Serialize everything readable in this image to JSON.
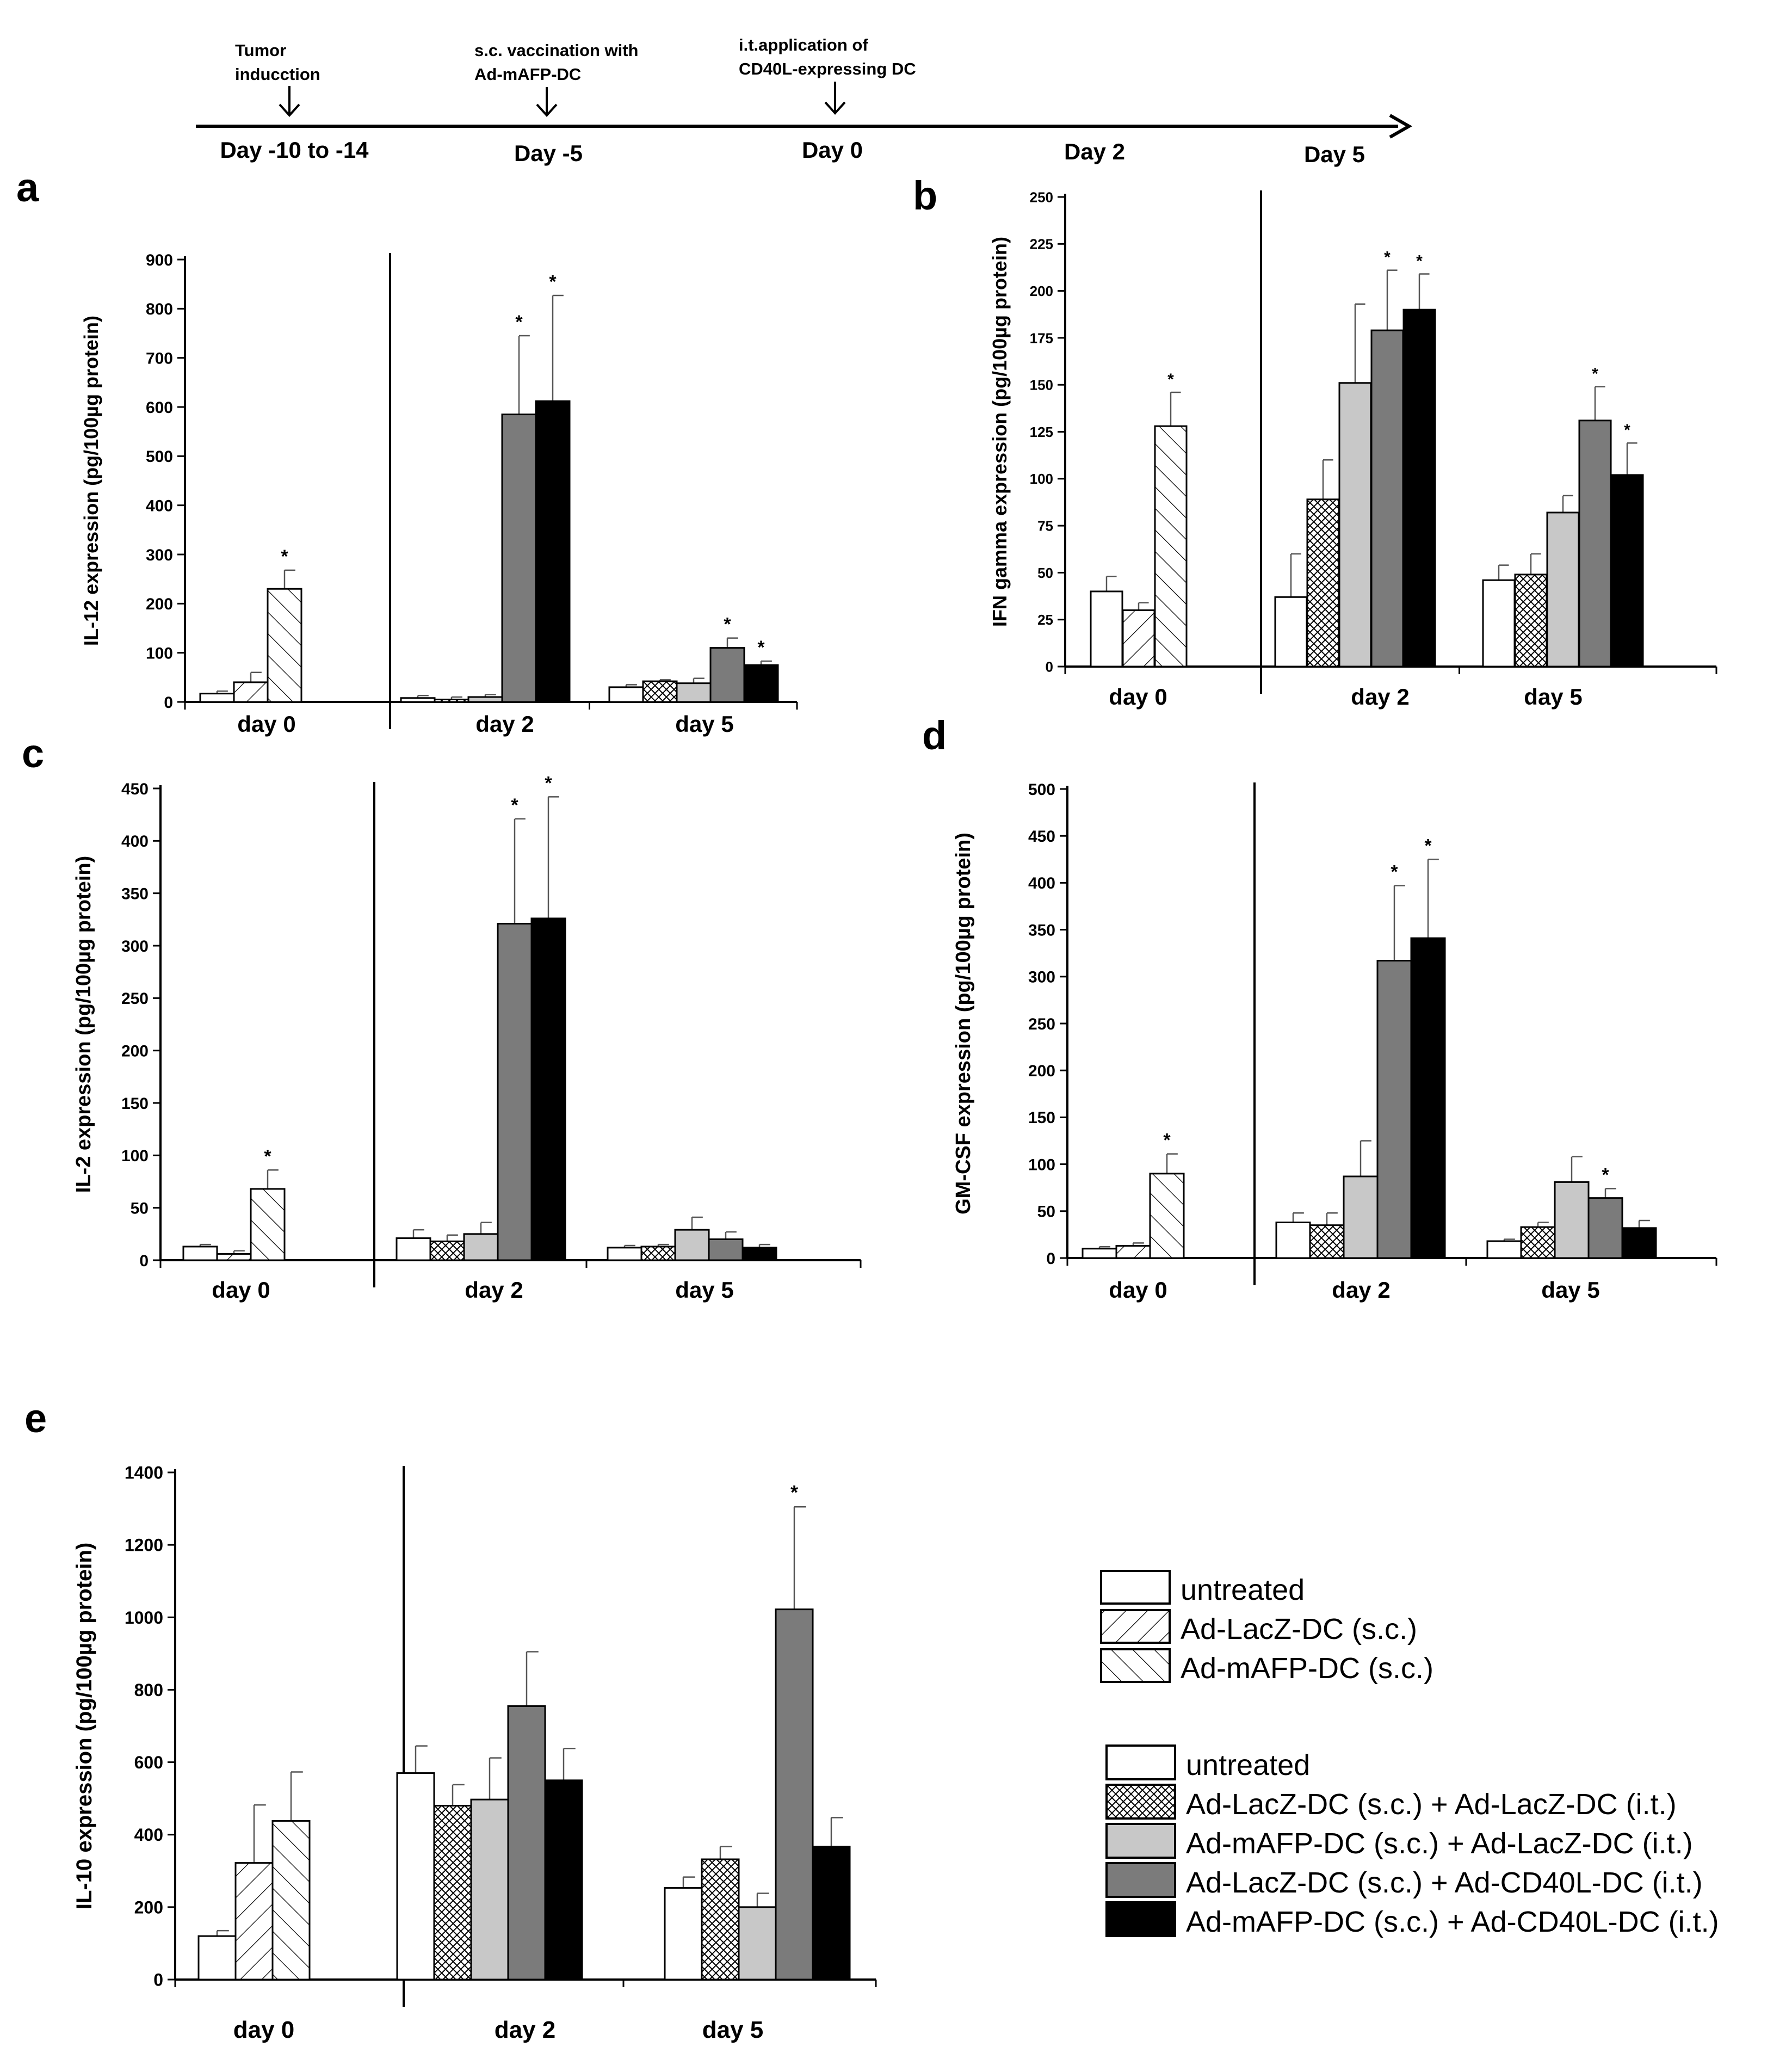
{
  "timeline": {
    "events": [
      {
        "label_lines": [
          "Tumor",
          "inducction"
        ]
      },
      {
        "label_lines": [
          "s.c. vaccination  with",
          "Ad-mAFP-DC"
        ]
      },
      {
        "label_lines": [
          "i.t.application  of",
          "CD40L-expressing  DC"
        ]
      }
    ],
    "days": [
      "Day -10 to -14",
      "Day -5",
      "Day 0",
      "Day 2",
      "Day 5"
    ]
  },
  "legend": {
    "group1": [
      {
        "label": "untreated",
        "pattern": "white"
      },
      {
        "label": "Ad-LacZ-DC (s.c.)",
        "pattern": "hatch-forward"
      },
      {
        "label": "Ad-mAFP-DC (s.c.)",
        "pattern": "hatch-back"
      }
    ],
    "group2": [
      {
        "label": "untreated",
        "pattern": "white"
      },
      {
        "label": "Ad-LacZ-DC (s.c.) + Ad-LacZ-DC (i.t.)",
        "pattern": "crosshatch"
      },
      {
        "label": "Ad-mAFP-DC (s.c.) + Ad-LacZ-DC (i.t.)",
        "pattern": "lightgray"
      },
      {
        "label": "Ad-LacZ-DC (s.c.) + Ad-CD40L-DC (i.t.)",
        "pattern": "darkgray"
      },
      {
        "label": "Ad-mAFP-DC (s.c.) + Ad-CD40L-DC (i.t.)",
        "pattern": "black"
      }
    ]
  },
  "colors": {
    "white": "#ffffff",
    "lightgray": "#c8c8c8",
    "darkgray": "#7b7b7b",
    "black": "#000000",
    "stroke": "#000000"
  },
  "significance_marker": "*",
  "chart_data": [
    {
      "panel": "a",
      "type": "bar",
      "ylabel": "IL-12 expression (pg/100µg protein)",
      "ylim": [
        0,
        900
      ],
      "yticks": [
        0,
        100,
        200,
        300,
        400,
        500,
        600,
        700,
        800,
        900
      ],
      "groups": [
        {
          "label": "day 0",
          "bars": [
            {
              "value": 17,
              "error": 5,
              "sig": false
            },
            {
              "value": 40,
              "error": 20,
              "sig": false
            },
            {
              "value": 230,
              "error": 38,
              "sig": true
            }
          ]
        },
        {
          "label": "day 2",
          "bars": [
            {
              "value": 8,
              "error": 5,
              "sig": false
            },
            {
              "value": 5,
              "error": 5,
              "sig": false
            },
            {
              "value": 10,
              "error": 5,
              "sig": false
            },
            {
              "value": 585,
              "error": 160,
              "sig": true
            },
            {
              "value": 612,
              "error": 215,
              "sig": true
            }
          ]
        },
        {
          "label": "day 5",
          "bars": [
            {
              "value": 30,
              "error": 5,
              "sig": false
            },
            {
              "value": 42,
              "error": 3,
              "sig": false
            },
            {
              "value": 38,
              "error": 10,
              "sig": false
            },
            {
              "value": 110,
              "error": 20,
              "sig": true
            },
            {
              "value": 75,
              "error": 8,
              "sig": true
            }
          ]
        }
      ]
    },
    {
      "panel": "b",
      "type": "bar",
      "ylabel": "IFN gamma expression (pg/100µg protein)",
      "ylim": [
        0,
        250
      ],
      "yticks": [
        0,
        25,
        50,
        75,
        100,
        125,
        150,
        175,
        200,
        225,
        250
      ],
      "groups": [
        {
          "label": "day 0",
          "bars": [
            {
              "value": 40,
              "error": 8,
              "sig": false
            },
            {
              "value": 30,
              "error": 4,
              "sig": false
            },
            {
              "value": 128,
              "error": 18,
              "sig": true
            }
          ]
        },
        {
          "label": "day 2",
          "bars": [
            {
              "value": 37,
              "error": 23,
              "sig": false
            },
            {
              "value": 89,
              "error": 21,
              "sig": false
            },
            {
              "value": 151,
              "error": 42,
              "sig": false
            },
            {
              "value": 179,
              "error": 32,
              "sig": true
            },
            {
              "value": 190,
              "error": 19,
              "sig": true
            }
          ]
        },
        {
          "label": "day 5",
          "bars": [
            {
              "value": 46,
              "error": 8,
              "sig": false
            },
            {
              "value": 49,
              "error": 11,
              "sig": false
            },
            {
              "value": 82,
              "error": 9,
              "sig": false
            },
            {
              "value": 131,
              "error": 18,
              "sig": true
            },
            {
              "value": 102,
              "error": 17,
              "sig": true
            }
          ]
        }
      ]
    },
    {
      "panel": "c",
      "type": "bar",
      "ylabel": "IL-2 expression (pg/100µg protein)",
      "ylim": [
        0,
        450
      ],
      "yticks": [
        0,
        50,
        100,
        150,
        200,
        250,
        300,
        350,
        400,
        450
      ],
      "groups": [
        {
          "label": "day 0",
          "bars": [
            {
              "value": 13,
              "error": 2,
              "sig": false
            },
            {
              "value": 6,
              "error": 3,
              "sig": false
            },
            {
              "value": 68,
              "error": 18,
              "sig": true
            }
          ]
        },
        {
          "label": "day 2",
          "bars": [
            {
              "value": 21,
              "error": 8,
              "sig": false
            },
            {
              "value": 18,
              "error": 6,
              "sig": false
            },
            {
              "value": 25,
              "error": 11,
              "sig": false
            },
            {
              "value": 321,
              "error": 100,
              "sig": true
            },
            {
              "value": 326,
              "error": 116,
              "sig": true
            }
          ]
        },
        {
          "label": "day 5",
          "bars": [
            {
              "value": 12,
              "error": 2,
              "sig": false
            },
            {
              "value": 13,
              "error": 2,
              "sig": false
            },
            {
              "value": 29,
              "error": 12,
              "sig": false
            },
            {
              "value": 20,
              "error": 7,
              "sig": false
            },
            {
              "value": 12,
              "error": 3,
              "sig": false
            }
          ]
        }
      ]
    },
    {
      "panel": "d",
      "type": "bar",
      "ylabel": "GM-CSF expression (pg/100µg protein)",
      "ylim": [
        0,
        500
      ],
      "yticks": [
        0,
        50,
        100,
        150,
        200,
        250,
        300,
        350,
        400,
        450,
        500
      ],
      "groups": [
        {
          "label": "day 0",
          "bars": [
            {
              "value": 10,
              "error": 2,
              "sig": false
            },
            {
              "value": 13,
              "error": 3,
              "sig": false
            },
            {
              "value": 90,
              "error": 21,
              "sig": true
            }
          ]
        },
        {
          "label": "day 2",
          "bars": [
            {
              "value": 38,
              "error": 10,
              "sig": false
            },
            {
              "value": 35,
              "error": 13,
              "sig": false
            },
            {
              "value": 87,
              "error": 38,
              "sig": false
            },
            {
              "value": 317,
              "error": 80,
              "sig": true
            },
            {
              "value": 341,
              "error": 84,
              "sig": true
            }
          ]
        },
        {
          "label": "day 5",
          "bars": [
            {
              "value": 18,
              "error": 2,
              "sig": false
            },
            {
              "value": 33,
              "error": 5,
              "sig": false
            },
            {
              "value": 81,
              "error": 27,
              "sig": false
            },
            {
              "value": 64,
              "error": 10,
              "sig": true
            },
            {
              "value": 32,
              "error": 8,
              "sig": false
            }
          ]
        }
      ]
    },
    {
      "panel": "e",
      "type": "bar",
      "ylabel": "IL-10 expression (pg/100µg protein)",
      "ylim": [
        0,
        1400
      ],
      "yticks": [
        0,
        200,
        400,
        600,
        800,
        1000,
        1200,
        1400
      ],
      "groups": [
        {
          "label": "day 0",
          "bars": [
            {
              "value": 120,
              "error": 15,
              "sig": false
            },
            {
              "value": 322,
              "error": 160,
              "sig": false
            },
            {
              "value": 438,
              "error": 135,
              "sig": false
            }
          ]
        },
        {
          "label": "day 2",
          "bars": [
            {
              "value": 570,
              "error": 75,
              "sig": false
            },
            {
              "value": 480,
              "error": 58,
              "sig": false
            },
            {
              "value": 497,
              "error": 115,
              "sig": false
            },
            {
              "value": 755,
              "error": 150,
              "sig": false
            },
            {
              "value": 550,
              "error": 88,
              "sig": false
            }
          ]
        },
        {
          "label": "day 5",
          "bars": [
            {
              "value": 253,
              "error": 30,
              "sig": false
            },
            {
              "value": 332,
              "error": 35,
              "sig": false
            },
            {
              "value": 200,
              "error": 38,
              "sig": false
            },
            {
              "value": 1022,
              "error": 283,
              "sig": true
            },
            {
              "value": 367,
              "error": 80,
              "sig": false
            }
          ]
        }
      ]
    }
  ]
}
